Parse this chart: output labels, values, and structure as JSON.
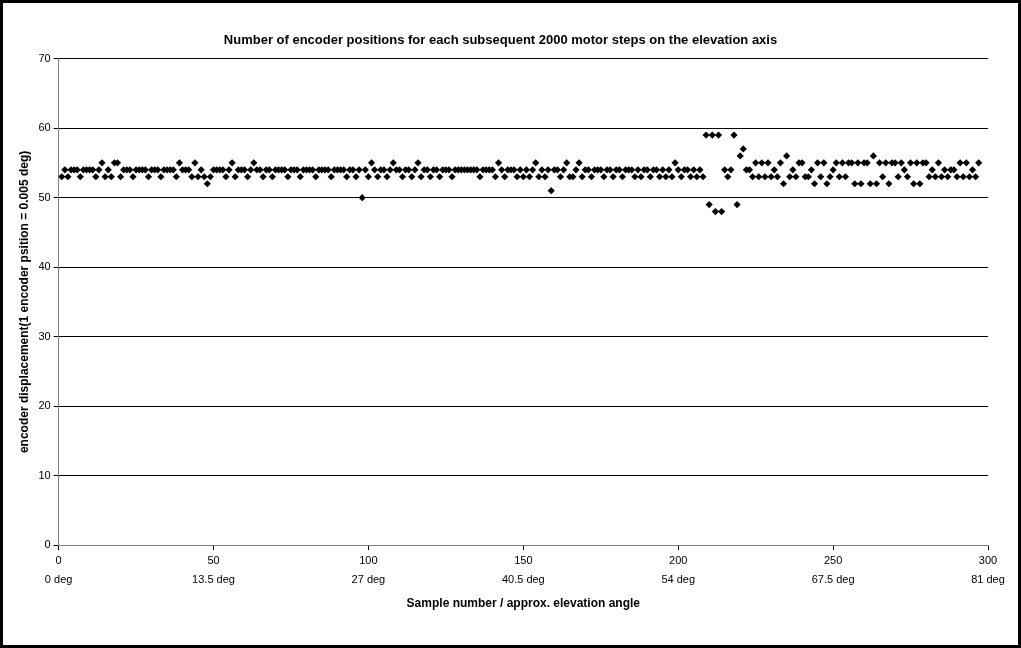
{
  "chart_data": {
    "type": "scatter",
    "title": "Number of encoder positions for each subsequent 2000 motor steps on the elevation axis",
    "xlabel": "Sample number / approx. elevation angle",
    "ylabel": "encoder displacement(1 encoder psition = 0.005 deg)",
    "xlim": [
      0,
      300
    ],
    "ylim": [
      0,
      70
    ],
    "xticks": [
      0,
      50,
      100,
      150,
      200,
      250,
      300
    ],
    "x2lim": [
      0,
      81
    ],
    "x2ticks": [
      {
        "value": 0,
        "label": "0 deg"
      },
      {
        "value": 13.5,
        "label": "13.5 deg"
      },
      {
        "value": 27,
        "label": "27 deg"
      },
      {
        "value": 40.5,
        "label": "40.5 deg"
      },
      {
        "value": 54,
        "label": "54 deg"
      },
      {
        "value": 67.5,
        "label": "67.5 deg"
      },
      {
        "value": 81,
        "label": "81 deg"
      }
    ],
    "yticks": [
      0,
      10,
      20,
      30,
      40,
      50,
      60,
      70
    ],
    "grid": "y",
    "legend": false,
    "marker": "diamond",
    "series": [
      {
        "color": "#000000",
        "x": [
          1,
          2,
          3,
          4,
          5,
          6,
          7,
          8,
          9,
          10,
          11,
          12,
          13,
          14,
          15,
          16,
          17,
          18,
          19,
          20,
          21,
          22,
          23,
          24,
          25,
          26,
          27,
          28,
          29,
          30,
          31,
          32,
          33,
          34,
          35,
          36,
          37,
          38,
          39,
          40,
          41,
          42,
          43,
          44,
          45,
          46,
          47,
          48,
          49,
          50,
          51,
          52,
          53,
          54,
          55,
          56,
          57,
          58,
          59,
          60,
          61,
          62,
          63,
          64,
          65,
          66,
          67,
          68,
          69,
          70,
          71,
          72,
          73,
          74,
          75,
          76,
          77,
          78,
          79,
          80,
          81,
          82,
          83,
          84,
          85,
          86,
          87,
          88,
          89,
          90,
          91,
          92,
          93,
          94,
          95,
          96,
          97,
          98,
          99,
          100,
          101,
          102,
          103,
          104,
          105,
          106,
          107,
          108,
          109,
          110,
          111,
          112,
          113,
          114,
          115,
          116,
          117,
          118,
          119,
          120,
          121,
          122,
          123,
          124,
          125,
          126,
          127,
          128,
          129,
          130,
          131,
          132,
          133,
          134,
          135,
          136,
          137,
          138,
          139,
          140,
          141,
          142,
          143,
          144,
          145,
          146,
          147,
          148,
          149,
          150,
          151,
          152,
          153,
          154,
          155,
          156,
          157,
          158,
          159,
          160,
          161,
          162,
          163,
          164,
          165,
          166,
          167,
          168,
          169,
          170,
          171,
          172,
          173,
          174,
          175,
          176,
          177,
          178,
          179,
          180,
          181,
          182,
          183,
          184,
          185,
          186,
          187,
          188,
          189,
          190,
          191,
          192,
          193,
          194,
          195,
          196,
          197,
          198,
          199,
          200,
          201,
          202,
          203,
          204,
          205,
          206,
          207,
          208,
          209,
          210,
          211,
          212,
          213,
          214,
          215,
          216,
          217,
          218,
          219,
          220,
          221,
          222,
          223,
          224,
          225,
          226,
          227,
          228,
          229,
          230,
          231,
          232,
          233,
          234,
          235,
          236,
          237,
          238,
          239,
          240,
          241,
          242,
          243,
          244,
          245,
          246,
          247,
          248,
          249,
          250,
          251,
          252,
          253,
          254,
          255,
          256,
          257,
          258,
          259,
          260,
          261,
          262,
          263,
          264,
          265,
          266,
          267,
          268,
          269,
          270,
          271,
          272,
          273,
          274,
          275,
          276,
          277,
          278,
          279,
          280,
          281,
          282,
          283,
          284,
          285,
          286,
          287,
          288,
          289,
          290,
          291,
          292,
          293,
          294,
          295,
          296,
          297
        ],
        "values": [
          53,
          54,
          53,
          54,
          54,
          54,
          53,
          54,
          54,
          54,
          54,
          53,
          54,
          55,
          53,
          54,
          53,
          55,
          55,
          53,
          54,
          54,
          54,
          53,
          54,
          54,
          54,
          54,
          53,
          54,
          54,
          54,
          53,
          54,
          54,
          54,
          54,
          53,
          55,
          54,
          54,
          54,
          53,
          55,
          53,
          54,
          53,
          52,
          53,
          54,
          54,
          54,
          54,
          53,
          54,
          55,
          53,
          54,
          54,
          54,
          53,
          54,
          55,
          54,
          54,
          53,
          54,
          54,
          53,
          54,
          54,
          54,
          54,
          53,
          54,
          54,
          54,
          53,
          54,
          54,
          54,
          54,
          53,
          54,
          54,
          54,
          54,
          53,
          54,
          54,
          54,
          54,
          53,
          54,
          54,
          53,
          54,
          50,
          54,
          53,
          55,
          54,
          53,
          54,
          54,
          53,
          54,
          55,
          54,
          54,
          53,
          54,
          54,
          53,
          54,
          55,
          53,
          54,
          54,
          53,
          54,
          54,
          53,
          54,
          54,
          54,
          53,
          54,
          54,
          54,
          54,
          54,
          54,
          54,
          54,
          53,
          54,
          54,
          54,
          54,
          53,
          55,
          54,
          53,
          54,
          54,
          54,
          53,
          54,
          53,
          54,
          53,
          54,
          55,
          53,
          54,
          53,
          54,
          51,
          54,
          54,
          53,
          54,
          55,
          53,
          53,
          54,
          55,
          53,
          54,
          54,
          53,
          54,
          54,
          54,
          53,
          54,
          54,
          53,
          54,
          54,
          53,
          54,
          54,
          54,
          53,
          54,
          53,
          54,
          54,
          53,
          54,
          54,
          53,
          54,
          53,
          54,
          53,
          55,
          54,
          53,
          54,
          54,
          53,
          54,
          53,
          54,
          53,
          59,
          49,
          59,
          48,
          59,
          48,
          54,
          53,
          54,
          59,
          49,
          56,
          57,
          54,
          54,
          53,
          55,
          53,
          55,
          53,
          55,
          53,
          54,
          53,
          55,
          52,
          56,
          53,
          54,
          53,
          55,
          55,
          53,
          53,
          54,
          52,
          55,
          53,
          55,
          52,
          53,
          54,
          55,
          53,
          55,
          53,
          55,
          55,
          52,
          55,
          52,
          55,
          55,
          52,
          56,
          52,
          55,
          53,
          55,
          52,
          55,
          55,
          53,
          55,
          54,
          53,
          55,
          52,
          55,
          52,
          55,
          55,
          53,
          54,
          53,
          55,
          53,
          54,
          53,
          54,
          54,
          53,
          55,
          53,
          55,
          53,
          54,
          53,
          55
        ]
      }
    ]
  }
}
